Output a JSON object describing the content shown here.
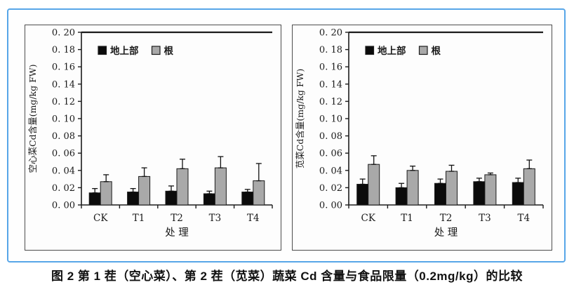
{
  "figure": {
    "caption": "图 2  第 1 茬（空心菜）、第 2 茬（苋菜）蔬菜 Cd 含量与食品限量（0.2mg/kg）的比较"
  },
  "colors": {
    "frame_blue": "#57a6e8",
    "chart_border": "#4c4c4c",
    "axis": "#1c1c1c",
    "shoot_bar": "#0b0b0b",
    "root_bar": "#a9a9a9",
    "text": "#1a1a1a"
  },
  "chart_data": [
    {
      "type": "bar",
      "title": "",
      "ylabel": "空心菜Cd含量(mg/kg FW)",
      "xlabel": "处  理",
      "categories": [
        "CK",
        "T1",
        "T2",
        "T3",
        "T4"
      ],
      "ylim": [
        0,
        0.2
      ],
      "ytick_step": 0.02,
      "ytick_labels": [
        "0. 00",
        "0. 02",
        "0. 04",
        "0. 06",
        "0. 08",
        "0. 10",
        "0. 12",
        "0. 14",
        "0. 16",
        "0. 18",
        "0. 20"
      ],
      "grid": false,
      "ymax_frame_line": 0.2,
      "legend": {
        "position": "top-left-inside",
        "entries": [
          "地上部",
          "根"
        ]
      },
      "series": [
        {
          "name": "地上部",
          "color": "#0b0b0b",
          "values": [
            0.014,
            0.015,
            0.016,
            0.013,
            0.015
          ],
          "errors": [
            0.005,
            0.004,
            0.006,
            0.003,
            0.003
          ]
        },
        {
          "name": "根",
          "color": "#a9a9a9",
          "values": [
            0.027,
            0.033,
            0.042,
            0.043,
            0.028
          ],
          "errors": [
            0.008,
            0.01,
            0.011,
            0.013,
            0.02
          ]
        }
      ]
    },
    {
      "type": "bar",
      "title": "",
      "ylabel": "苋菜Cd含量(mg/kg FW)",
      "xlabel": "处  理",
      "categories": [
        "CK",
        "T1",
        "T2",
        "T3",
        "T4"
      ],
      "ylim": [
        0,
        0.2
      ],
      "ytick_step": 0.02,
      "ytick_labels": [
        "0. 00",
        "0. 02",
        "0. 04",
        "0. 06",
        "0. 08",
        "0. 10",
        "0. 12",
        "0. 14",
        "0. 16",
        "0. 18",
        "0. 20"
      ],
      "grid": false,
      "ymax_frame_line": 0.2,
      "legend": {
        "position": "top-left-inside",
        "entries": [
          "地上部",
          "根"
        ]
      },
      "series": [
        {
          "name": "地上部",
          "color": "#0b0b0b",
          "values": [
            0.024,
            0.02,
            0.025,
            0.027,
            0.026
          ],
          "errors": [
            0.006,
            0.005,
            0.005,
            0.004,
            0.005
          ]
        },
        {
          "name": "根",
          "color": "#a9a9a9",
          "values": [
            0.047,
            0.04,
            0.039,
            0.035,
            0.042
          ],
          "errors": [
            0.01,
            0.005,
            0.007,
            0.002,
            0.01
          ]
        }
      ]
    }
  ]
}
